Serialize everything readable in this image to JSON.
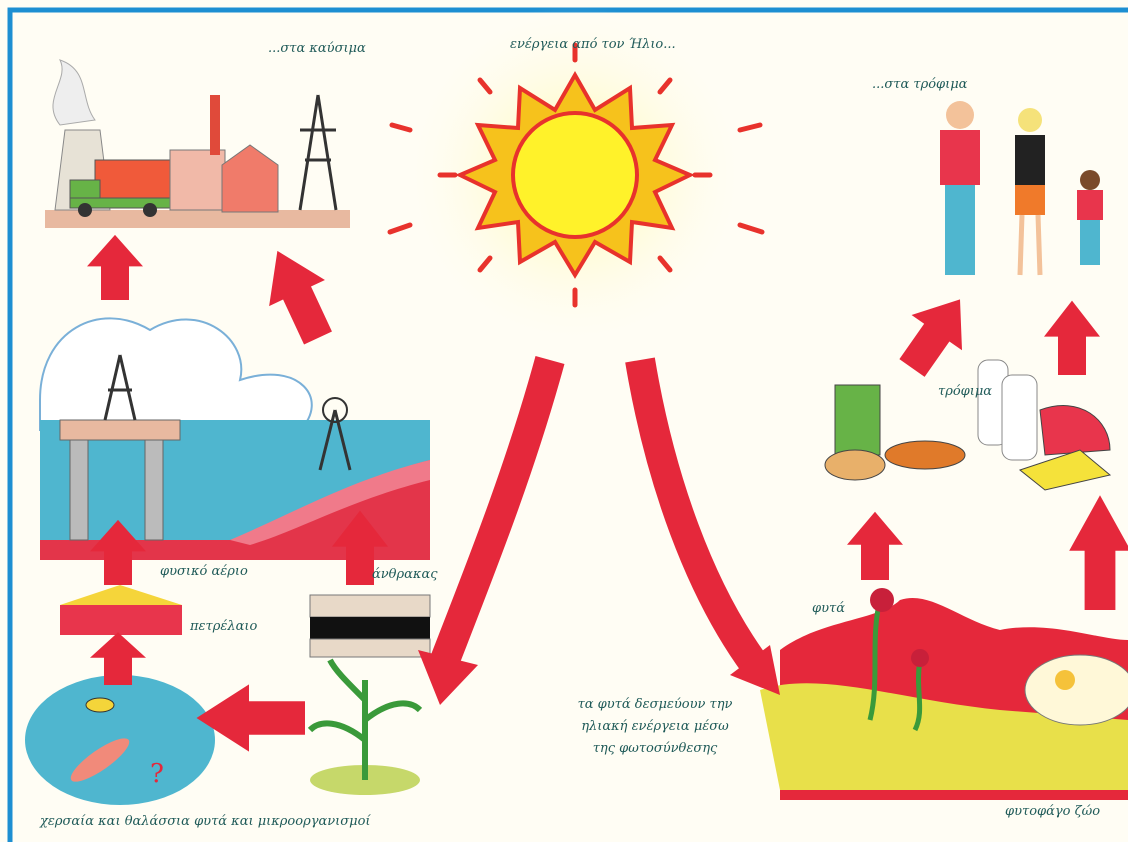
{
  "labels": {
    "fuels": "...στα καύσιμα",
    "sun_energy": "ενέργεια από τον Ήλιο...",
    "foods_top": "...στα τρόφιμα",
    "foods": "τρόφιμα",
    "natural_gas": "φυσικό αέριο",
    "coal": "άνθρακας",
    "oil": "πετρέλαιο",
    "plants": "φυτά",
    "photosynthesis": [
      "τα φυτά δεσμεύουν την",
      "ηλιακή ενέργεια μέσω",
      "της φωτοσύνθεσης"
    ],
    "organisms": "χερσαία και θαλάσσια φυτά και μικροοργανισμοί",
    "herbivore": "φυτοφάγο ζώο"
  }
}
